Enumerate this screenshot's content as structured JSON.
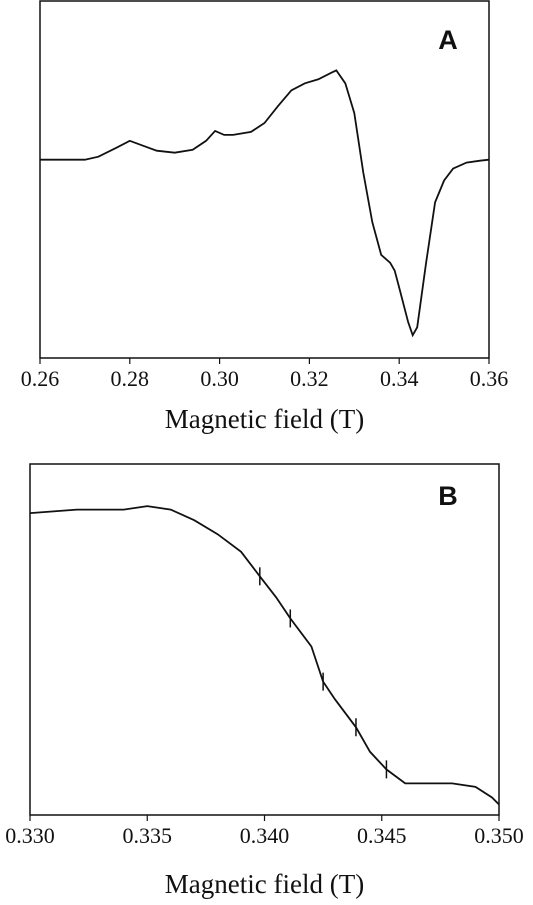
{
  "chart_data": [
    {
      "type": "line",
      "annotation": "A",
      "x_label": "Magnetic field (T)",
      "xlim": [
        0.26,
        0.36
      ],
      "xticks": [
        0.26,
        0.28,
        {
          "value": 0.3,
          "label": "0.30"
        },
        0.32,
        0.34,
        0.36
      ],
      "ylim": [
        -2.0,
        1.6
      ],
      "series": [
        {
          "color": "#111111",
          "x": [
            0.26,
            0.27,
            0.273,
            0.277,
            0.28,
            0.283,
            0.286,
            0.29,
            0.294,
            0.297,
            0.299,
            0.301,
            0.303,
            0.307,
            0.31,
            0.313,
            0.316,
            0.319,
            0.322,
            0.325,
            0.326,
            0.328,
            0.33,
            0.332,
            0.334,
            0.336,
            0.338,
            0.339,
            0.34,
            0.342,
            0.343,
            0.344,
            0.346,
            0.348,
            0.35,
            0.352,
            0.355,
            0.358,
            0.36
          ],
          "values": [
            0,
            0,
            0.03,
            0.12,
            0.19,
            0.14,
            0.09,
            0.07,
            0.1,
            0.19,
            0.29,
            0.25,
            0.25,
            0.28,
            0.37,
            0.54,
            0.7,
            0.77,
            0.81,
            0.88,
            0.9,
            0.77,
            0.47,
            -0.13,
            -0.63,
            -0.96,
            -1.04,
            -1.12,
            -1.29,
            -1.64,
            -1.77,
            -1.69,
            -1.04,
            -0.43,
            -0.21,
            -0.09,
            -0.03,
            -0.01,
            0
          ]
        }
      ]
    },
    {
      "type": "line",
      "annotation": "B",
      "x_label": "Magnetic field (T)",
      "xlim": [
        0.33,
        0.35
      ],
      "xticks": [
        {
          "value": 0.33,
          "label": "0.330"
        },
        0.335,
        {
          "value": 0.34,
          "label": "0.340"
        },
        0.345,
        {
          "value": 0.35,
          "label": "0.350"
        }
      ],
      "ylim": [
        0,
        1
      ],
      "series": [
        {
          "color": "#111111",
          "x": [
            0.33,
            0.332,
            0.334,
            0.335,
            0.336,
            0.337,
            0.338,
            0.339,
            0.3398,
            0.3405,
            0.3411,
            0.342,
            0.3425,
            0.343,
            0.3439,
            0.3445,
            0.3452,
            0.346,
            0.347,
            0.348,
            0.349,
            0.3497,
            0.35
          ],
          "values": [
            0.86,
            0.87,
            0.87,
            0.88,
            0.87,
            0.84,
            0.8,
            0.75,
            0.68,
            0.62,
            0.56,
            0.48,
            0.38,
            0.33,
            0.25,
            0.18,
            0.13,
            0.09,
            0.09,
            0.09,
            0.08,
            0.05,
            0.03
          ]
        }
      ],
      "markers": [
        0.3398,
        0.3411,
        0.3425,
        0.3439,
        0.3452
      ]
    }
  ]
}
